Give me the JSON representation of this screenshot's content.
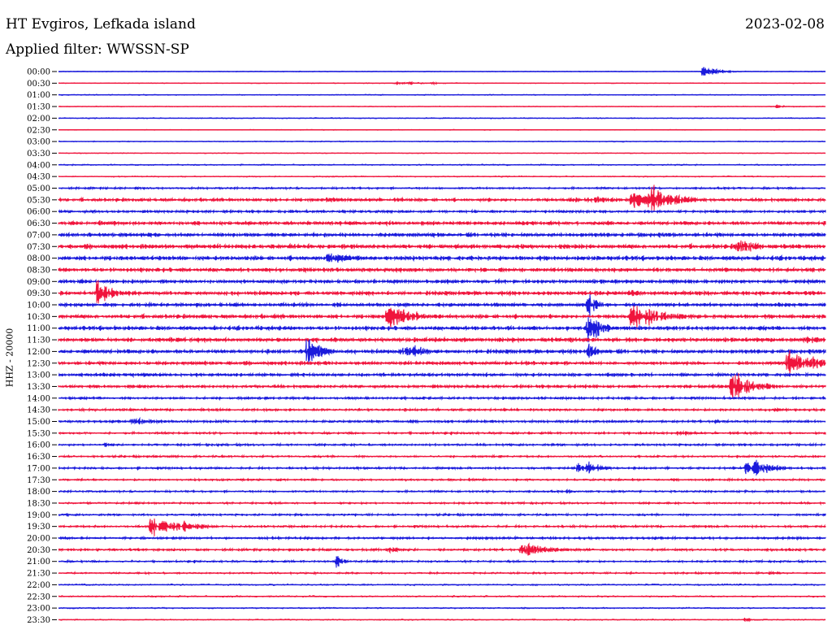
{
  "header": {
    "station": "HT Evgiros, Lefkada island",
    "date": "2023-02-08",
    "filter_label": "Applied filter: WWSSN-SP"
  },
  "channel_label": "HHZ - 20000",
  "colors": {
    "blue": "#1a1adc",
    "red": "#f0143c"
  },
  "chart_data": {
    "type": "line",
    "title": "HT Evgiros, Lefkada island",
    "subtitle": "Applied filter: WWSSN-SP",
    "ylabel": "HHZ - 20000",
    "xlabel": "",
    "grid": false,
    "legend": "none",
    "tick_labels": [
      "00:00",
      "00:30",
      "01:00",
      "01:30",
      "02:00",
      "02:30",
      "03:00",
      "03:30",
      "04:00",
      "04:30",
      "05:00",
      "05:30",
      "06:00",
      "06:30",
      "07:00",
      "07:30",
      "08:00",
      "08:30",
      "09:00",
      "09:30",
      "10:00",
      "10:30",
      "11:00",
      "11:30",
      "12:00",
      "12:30",
      "13:00",
      "13:30",
      "14:00",
      "14:30",
      "15:00",
      "15:30",
      "16:00",
      "16:30",
      "17:00",
      "17:30",
      "18:00",
      "18:30",
      "19:00",
      "19:30",
      "20:00",
      "20:30",
      "21:00",
      "21:30",
      "22:00",
      "22:30",
      "23:00",
      "23:30"
    ],
    "trace_colors": [
      "blue",
      "red"
    ],
    "trace_noise": [
      0.4,
      0.4,
      0.5,
      0.4,
      0.5,
      0.4,
      0.5,
      0.4,
      0.7,
      0.6,
      1.0,
      1.6,
      1.3,
      1.8,
      2.0,
      2.2,
      2.2,
      2.0,
      1.9,
      2.0,
      1.8,
      2.0,
      2.0,
      2.1,
      2.0,
      1.8,
      1.6,
      1.5,
      1.3,
      1.2,
      1.2,
      1.1,
      1.1,
      1.0,
      1.1,
      1.0,
      1.0,
      1.0,
      1.0,
      1.1,
      1.2,
      1.2,
      1.0,
      0.9,
      0.8,
      0.8,
      0.7,
      0.6
    ],
    "events": [
      {
        "trace": "00:00",
        "minute": 25.2,
        "amp": 9,
        "dur": 0.6
      },
      {
        "trace": "00:30",
        "minute": 13.2,
        "amp": 3,
        "dur": 1.0
      },
      {
        "trace": "00:30",
        "minute": 14.6,
        "amp": 2.5,
        "dur": 0.4
      },
      {
        "trace": "01:30",
        "minute": 28.0,
        "amp": 2,
        "dur": 0.8
      },
      {
        "trace": "05:00",
        "minute": 3.0,
        "amp": 2,
        "dur": 0.3
      },
      {
        "trace": "05:30",
        "minute": 10.5,
        "amp": 4,
        "dur": 1.0
      },
      {
        "trace": "05:30",
        "minute": 20.0,
        "amp": 4,
        "dur": 2.0
      },
      {
        "trace": "05:30",
        "minute": 21.0,
        "amp": 6,
        "dur": 0.8
      },
      {
        "trace": "05:30",
        "minute": 22.4,
        "amp": 12,
        "dur": 1.2
      },
      {
        "trace": "05:30",
        "minute": 23.1,
        "amp": 28,
        "dur": 0.8
      },
      {
        "trace": "06:00",
        "minute": 9.0,
        "amp": 3,
        "dur": 0.6
      },
      {
        "trace": "06:30",
        "minute": 1.6,
        "amp": 4,
        "dur": 1.2
      },
      {
        "trace": "06:30",
        "minute": 11.0,
        "amp": 3,
        "dur": 1.5
      },
      {
        "trace": "07:00",
        "minute": 3.3,
        "amp": 3,
        "dur": 0.8
      },
      {
        "trace": "07:00",
        "minute": 29.4,
        "amp": 5,
        "dur": 0.8
      },
      {
        "trace": "07:30",
        "minute": 3.5,
        "amp": 4,
        "dur": 0.8
      },
      {
        "trace": "07:30",
        "minute": 7.6,
        "amp": 4,
        "dur": 0.8
      },
      {
        "trace": "07:30",
        "minute": 11.5,
        "amp": 4,
        "dur": 1.0
      },
      {
        "trace": "07:30",
        "minute": 15.5,
        "amp": 4,
        "dur": 1.0
      },
      {
        "trace": "07:30",
        "minute": 19.6,
        "amp": 4,
        "dur": 0.8
      },
      {
        "trace": "07:30",
        "minute": 26.5,
        "amp": 14,
        "dur": 0.8
      },
      {
        "trace": "08:00",
        "minute": 3.9,
        "amp": 3,
        "dur": 0.3
      },
      {
        "trace": "08:00",
        "minute": 10.5,
        "amp": 12,
        "dur": 1.0
      },
      {
        "trace": "09:00",
        "minute": 4.5,
        "amp": 3,
        "dur": 0.6
      },
      {
        "trace": "09:30",
        "minute": 1.5,
        "amp": 28,
        "dur": 0.5
      },
      {
        "trace": "09:30",
        "minute": 21.0,
        "amp": 3,
        "dur": 1.0
      },
      {
        "trace": "09:30",
        "minute": 22.4,
        "amp": 8,
        "dur": 0.3
      },
      {
        "trace": "10:00",
        "minute": 20.7,
        "amp": 34,
        "dur": 0.3
      },
      {
        "trace": "10:30",
        "minute": 12.8,
        "amp": 22,
        "dur": 1.0
      },
      {
        "trace": "10:30",
        "minute": 22.4,
        "amp": 26,
        "dur": 1.0
      },
      {
        "trace": "11:00",
        "minute": 16.2,
        "amp": 3,
        "dur": 0.5
      },
      {
        "trace": "11:00",
        "minute": 20.7,
        "amp": 24,
        "dur": 0.5
      },
      {
        "trace": "11:30",
        "minute": 14.5,
        "amp": 4,
        "dur": 2.0
      },
      {
        "trace": "11:30",
        "minute": 29.3,
        "amp": 6,
        "dur": 0.8
      },
      {
        "trace": "12:00",
        "minute": 9.7,
        "amp": 26,
        "dur": 0.6
      },
      {
        "trace": "12:00",
        "minute": 13.4,
        "amp": 10,
        "dur": 1.0
      },
      {
        "trace": "12:00",
        "minute": 13.9,
        "amp": 16,
        "dur": 0.4
      },
      {
        "trace": "12:00",
        "minute": 20.7,
        "amp": 16,
        "dur": 0.3
      },
      {
        "trace": "12:30",
        "minute": 28.5,
        "amp": 22,
        "dur": 1.2
      },
      {
        "trace": "13:00",
        "minute": 3.0,
        "amp": 4,
        "dur": 1.0
      },
      {
        "trace": "13:00",
        "minute": 21.6,
        "amp": 4,
        "dur": 1.0
      },
      {
        "trace": "13:30",
        "minute": 2.8,
        "amp": 4,
        "dur": 0.3
      },
      {
        "trace": "13:30",
        "minute": 26.3,
        "amp": 26,
        "dur": 0.8
      },
      {
        "trace": "14:30",
        "minute": 5.5,
        "amp": 2,
        "dur": 1.0
      },
      {
        "trace": "14:30",
        "minute": 28.0,
        "amp": 4,
        "dur": 0.3
      },
      {
        "trace": "15:00",
        "minute": 2.9,
        "amp": 6,
        "dur": 1.3
      },
      {
        "trace": "15:00",
        "minute": 25.6,
        "amp": 4,
        "dur": 0.3
      },
      {
        "trace": "15:30",
        "minute": 24.2,
        "amp": 4,
        "dur": 0.8
      },
      {
        "trace": "16:00",
        "minute": 1.8,
        "amp": 3,
        "dur": 0.8
      },
      {
        "trace": "17:00",
        "minute": 20.3,
        "amp": 10,
        "dur": 0.6
      },
      {
        "trace": "17:00",
        "minute": 20.7,
        "amp": 12,
        "dur": 0.5
      },
      {
        "trace": "17:00",
        "minute": 26.9,
        "amp": 18,
        "dur": 0.8
      },
      {
        "trace": "18:00",
        "minute": 19.9,
        "amp": 4,
        "dur": 0.3
      },
      {
        "trace": "19:30",
        "minute": 3.6,
        "amp": 22,
        "dur": 0.9
      },
      {
        "trace": "19:30",
        "minute": 4.9,
        "amp": 10,
        "dur": 0.8
      },
      {
        "trace": "20:30",
        "minute": 12.9,
        "amp": 6,
        "dur": 0.6
      },
      {
        "trace": "20:30",
        "minute": 18.1,
        "amp": 14,
        "dur": 1.0
      },
      {
        "trace": "20:30",
        "minute": 23.5,
        "amp": 2,
        "dur": 0.8
      },
      {
        "trace": "21:00",
        "minute": 10.8,
        "amp": 12,
        "dur": 0.3
      },
      {
        "trace": "21:30",
        "minute": 27.8,
        "amp": 3,
        "dur": 0.5
      },
      {
        "trace": "23:30",
        "minute": 26.8,
        "amp": 3,
        "dur": 0.5
      }
    ]
  }
}
